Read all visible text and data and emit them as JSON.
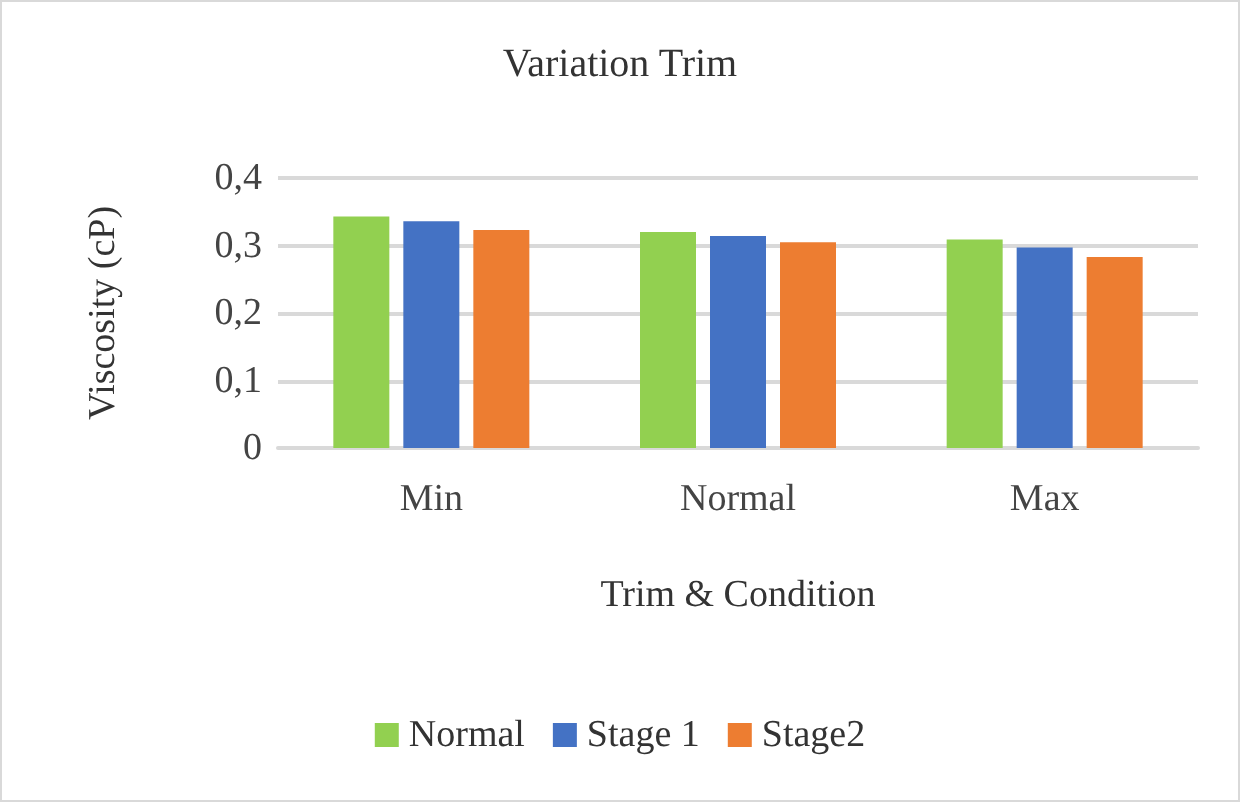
{
  "chart_data": {
    "type": "bar",
    "title": "Variation Trim",
    "xlabel": "Trim & Condition",
    "ylabel": "Viscosity (cP)",
    "categories": [
      "Min",
      "Normal",
      "Max"
    ],
    "series": [
      {
        "name": "Normal",
        "color": "#92d050",
        "values": [
          0.343,
          0.32,
          0.309
        ]
      },
      {
        "name": "Stage 1",
        "color": "#4472c4",
        "values": [
          0.336,
          0.314,
          0.297
        ]
      },
      {
        "name": "Stage2",
        "color": "#ed7d31",
        "values": [
          0.323,
          0.305,
          0.283
        ]
      }
    ],
    "ylim": [
      0,
      0.4
    ],
    "yticks": [
      {
        "value": 0,
        "label": "0"
      },
      {
        "value": 0.1,
        "label": "0,1"
      },
      {
        "value": 0.2,
        "label": "0,2"
      },
      {
        "value": 0.3,
        "label": "0,3"
      },
      {
        "value": 0.4,
        "label": "0,4"
      }
    ],
    "grid": "y",
    "legend": "bottom"
  }
}
